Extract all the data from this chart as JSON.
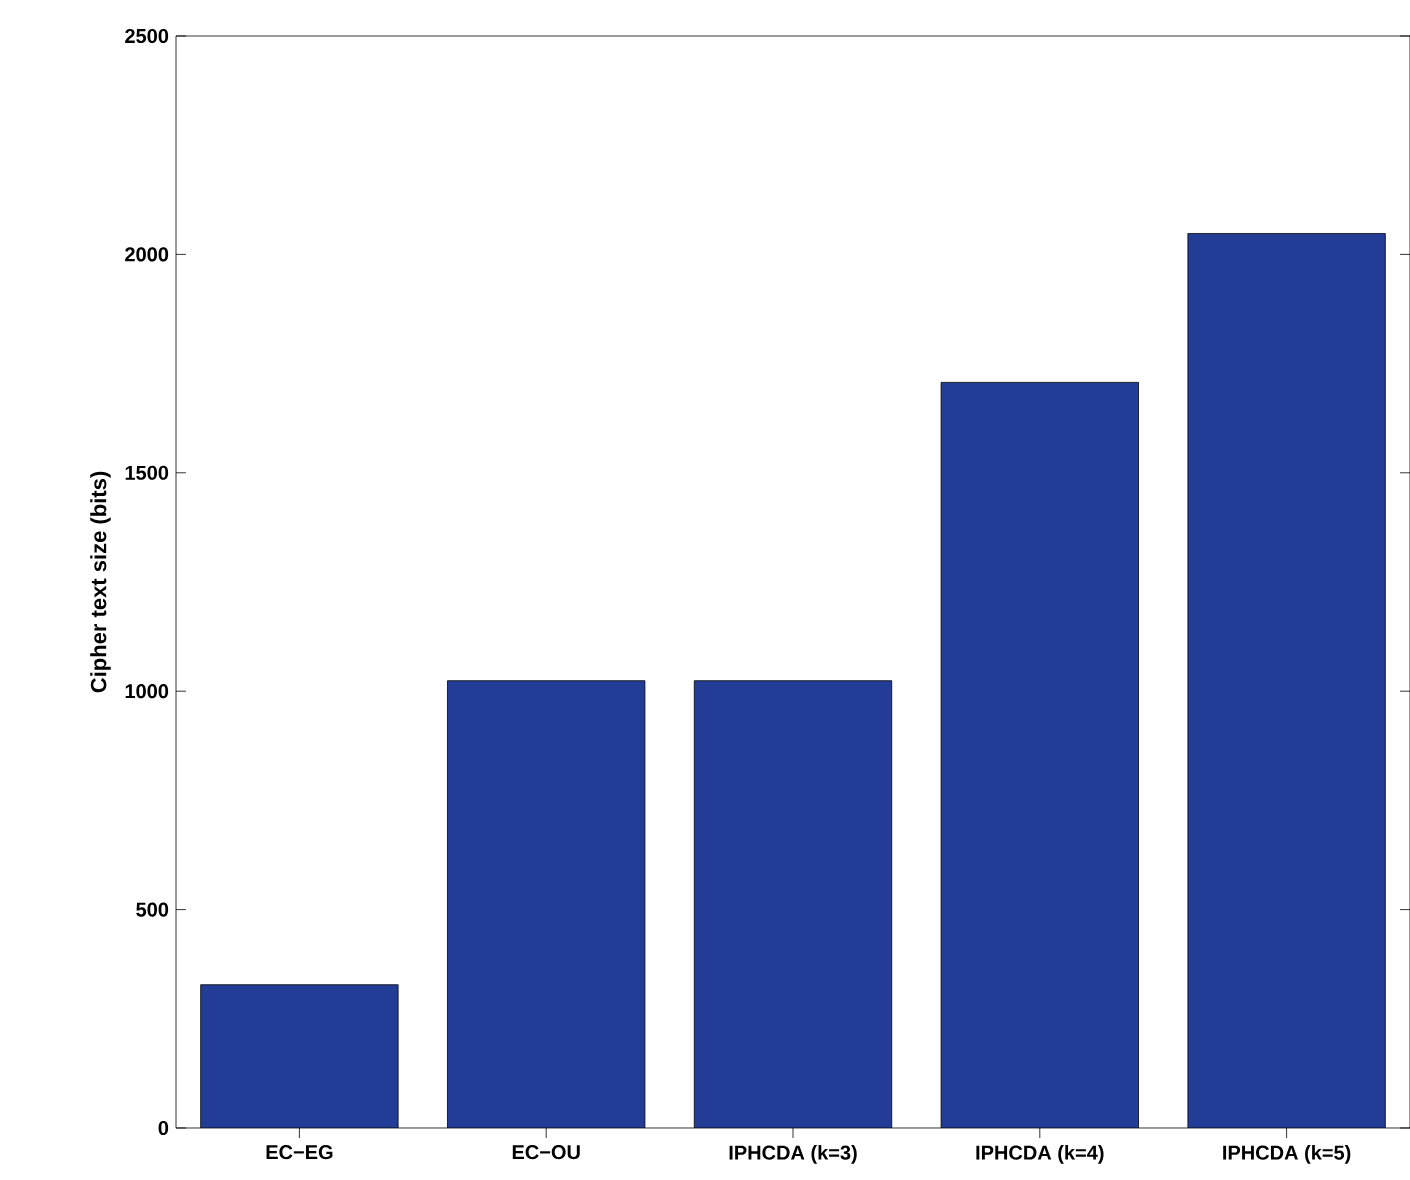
{
  "chart_data": {
    "type": "bar",
    "ylabel": "Cipher text size (bits)",
    "categories": [
      "EC−EG",
      "EC−OU",
      "IPHCDA (k=3)",
      "IPHCDA (k=4)",
      "IPHCDA (k=5)"
    ],
    "values": [
      328,
      1024,
      1024,
      1707,
      2048
    ],
    "color": "#233d96",
    "ylim": [
      0,
      2500
    ],
    "yticks": [
      0,
      500,
      1000,
      1500,
      2000,
      2500
    ]
  }
}
